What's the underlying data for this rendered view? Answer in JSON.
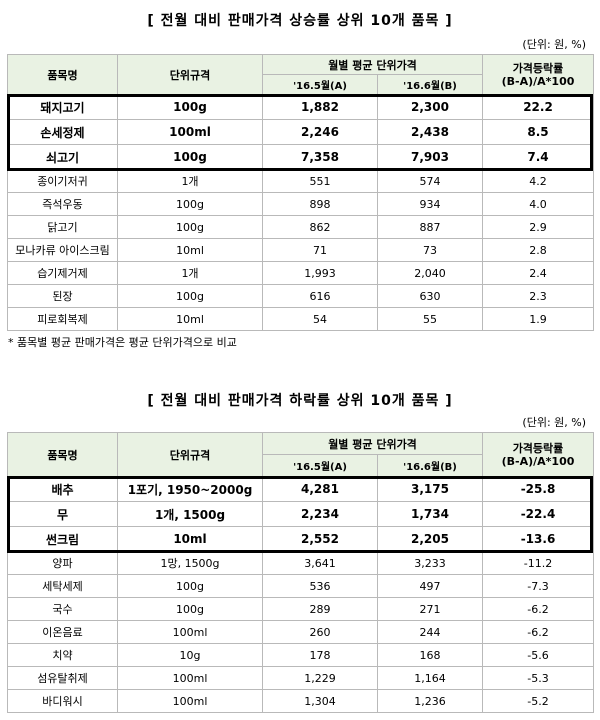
{
  "top": {
    "title": "[ 전월 대비 판매가격 상승률 상위 10개 품목 ]",
    "unit": "(단위: 원, %)",
    "headers": {
      "item": "품목명",
      "spec": "단위규격",
      "avg": "월별 평균 단위가격",
      "may": "'16.5월(A)",
      "jun": "'16.6월(B)",
      "rate_line1": "가격등락률",
      "rate_line2": "(B-A)/A*100"
    },
    "rows": [
      {
        "item": "돼지고기",
        "spec": "100g",
        "a": "1,882",
        "b": "2,300",
        "rate": "22.2"
      },
      {
        "item": "손세정제",
        "spec": "100ml",
        "a": "2,246",
        "b": "2,438",
        "rate": "8.5"
      },
      {
        "item": "쇠고기",
        "spec": "100g",
        "a": "7,358",
        "b": "7,903",
        "rate": "7.4"
      },
      {
        "item": "종이기저귀",
        "spec": "1개",
        "a": "551",
        "b": "574",
        "rate": "4.2"
      },
      {
        "item": "즉석우동",
        "spec": "100g",
        "a": "898",
        "b": "934",
        "rate": "4.0"
      },
      {
        "item": "닭고기",
        "spec": "100g",
        "a": "862",
        "b": "887",
        "rate": "2.9"
      },
      {
        "item": "모나카류 아이스크림",
        "spec": "10ml",
        "a": "71",
        "b": "73",
        "rate": "2.8"
      },
      {
        "item": "습기제거제",
        "spec": "1개",
        "a": "1,993",
        "b": "2,040",
        "rate": "2.4"
      },
      {
        "item": "된장",
        "spec": "100g",
        "a": "616",
        "b": "630",
        "rate": "2.3"
      },
      {
        "item": "피로회복제",
        "spec": "10ml",
        "a": "54",
        "b": "55",
        "rate": "1.9"
      }
    ],
    "note": "* 품목별 평균 판매가격은 평균 단위가격으로 비교"
  },
  "bottom": {
    "title": "[ 전월 대비 판매가격 하락률 상위 10개 품목 ]",
    "unit": "(단위: 원, %)",
    "headers": {
      "item": "품목명",
      "spec": "단위규격",
      "avg": "월별 평균 단위가격",
      "may": "'16.5월(A)",
      "jun": "'16.6월(B)",
      "rate_line1": "가격등락률",
      "rate_line2": "(B-A)/A*100"
    },
    "rows": [
      {
        "item": "배추",
        "spec": "1포기, 1950~2000g",
        "a": "4,281",
        "b": "3,175",
        "rate": "-25.8"
      },
      {
        "item": "무",
        "spec": "1개, 1500g",
        "a": "2,234",
        "b": "1,734",
        "rate": "-22.4"
      },
      {
        "item": "썬크림",
        "spec": "10ml",
        "a": "2,552",
        "b": "2,205",
        "rate": "-13.6"
      },
      {
        "item": "양파",
        "spec": "1망, 1500g",
        "a": "3,641",
        "b": "3,233",
        "rate": "-11.2"
      },
      {
        "item": "세탁세제",
        "spec": "100g",
        "a": "536",
        "b": "497",
        "rate": "-7.3"
      },
      {
        "item": "국수",
        "spec": "100g",
        "a": "289",
        "b": "271",
        "rate": "-6.2"
      },
      {
        "item": "이온음료",
        "spec": "100ml",
        "a": "260",
        "b": "244",
        "rate": "-6.2"
      },
      {
        "item": "치약",
        "spec": "10g",
        "a": "178",
        "b": "168",
        "rate": "-5.6"
      },
      {
        "item": "섬유탈취제",
        "spec": "100ml",
        "a": "1,229",
        "b": "1,164",
        "rate": "-5.3"
      },
      {
        "item": "바디워시",
        "spec": "100ml",
        "a": "1,304",
        "b": "1,236",
        "rate": "-5.2"
      }
    ]
  }
}
